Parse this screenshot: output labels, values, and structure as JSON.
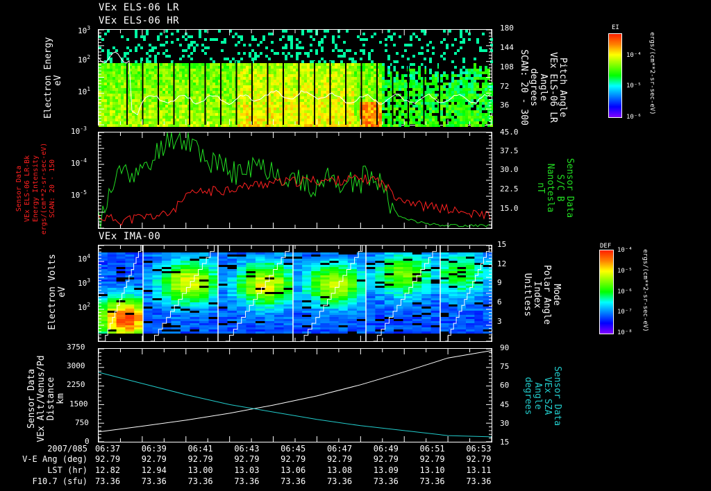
{
  "colors": {
    "background": "#000000",
    "axis": "#ffffff",
    "red_series": "#ff2020",
    "green_series": "#22dd22",
    "cyan_series": "#22cccc",
    "white_series": "#ffffff"
  },
  "panel1": {
    "title_lines": [
      "VEx ELS-06 LR",
      "VEx ELS-06 HR"
    ],
    "left_label": [
      "Electron Energy",
      "eV"
    ],
    "right_label": [
      "Pitch Angle",
      "VEx ELS-06 LR",
      "Angle",
      "degrees",
      "SCAN: 20 - 300"
    ],
    "left_ticks": [
      {
        "base": "10",
        "exp": "3"
      },
      {
        "base": "10",
        "exp": "2"
      },
      {
        "base": "10",
        "exp": "1"
      }
    ],
    "right_ticks": [
      "180",
      "144",
      "108",
      "72",
      "36"
    ],
    "colorbar": {
      "title": "EI",
      "ticks": [
        "10⁻⁴",
        "10⁻⁵",
        "10⁻⁶"
      ],
      "unit": "ergs/(cm**2-sr-sec-eV)"
    }
  },
  "panel2": {
    "left_label": [
      "Sensor Data",
      "VEx ELS-06 LR-Bk",
      "Energy Intensity",
      "ergs/(cm**2-sr-sec-eV)",
      "SCAN: 20 - 150"
    ],
    "right_label": [
      "Sensor Data",
      "S/C B",
      "Nanotesla",
      "nT"
    ],
    "left_ticks": [
      {
        "base": "10",
        "exp": "-3"
      },
      {
        "base": "10",
        "exp": "-4"
      },
      {
        "base": "10",
        "exp": "-5"
      }
    ],
    "right_ticks": [
      "45.0",
      "37.5",
      "30.0",
      "22.5",
      "15.0"
    ]
  },
  "panel3": {
    "title": "VEx IMA-00",
    "left_label": [
      "Electron Volts",
      "eV"
    ],
    "right_label": [
      "Mode",
      "Polar Angle",
      "Index",
      "Unitless"
    ],
    "left_ticks": [
      {
        "base": "10",
        "exp": "4"
      },
      {
        "base": "10",
        "exp": "3"
      },
      {
        "base": "10",
        "exp": "2"
      }
    ],
    "right_ticks": [
      "15",
      "12",
      "9",
      "6",
      "3"
    ],
    "colorbar": {
      "title": "DEF",
      "ticks": [
        "10⁻⁴",
        "10⁻⁵",
        "10⁻⁶",
        "10⁻⁷",
        "10⁻⁸"
      ],
      "unit": "ergs/(cm**2-sr-sec-eV)"
    }
  },
  "panel4": {
    "left_label": [
      "Sensor Data",
      "VEx Alt/Venus/Pd",
      "Distance",
      "km"
    ],
    "right_label": [
      "Sensor Data",
      "VEx SZA",
      "Angle",
      "degrees"
    ],
    "left_ticks": [
      "3750",
      "3000",
      "2250",
      "1500",
      "750",
      "0"
    ],
    "right_ticks": [
      "90",
      "75",
      "60",
      "45",
      "30",
      "15"
    ]
  },
  "footer": {
    "labels": [
      "2007/085",
      "V-E Ang (deg)",
      "LST (hr)",
      "F10.7 (sfu)"
    ],
    "times": [
      "06:37",
      "06:39",
      "06:41",
      "06:43",
      "06:45",
      "06:47",
      "06:49",
      "06:51",
      "06:53"
    ],
    "ve_ang": [
      "92.79",
      "92.79",
      "92.79",
      "92.79",
      "92.79",
      "92.79",
      "92.79",
      "92.79",
      "92.79"
    ],
    "lst": [
      "12.82",
      "12.94",
      "13.00",
      "13.03",
      "13.06",
      "13.08",
      "13.09",
      "13.10",
      "13.11"
    ],
    "f107": [
      "73.36",
      "73.36",
      "73.36",
      "73.36",
      "73.36",
      "73.36",
      "73.36",
      "73.36",
      "73.36"
    ]
  },
  "chart_data": [
    {
      "type": "heatmap",
      "title": "VEx ELS-06 LR / VEx ELS-06 HR",
      "ylabel": "Electron Energy (eV)",
      "y2label": "Pitch Angle, VEx ELS-06 LR, degrees, SCAN: 20 - 300",
      "ylim": [
        1,
        1000
      ],
      "yscale": "log",
      "y2lim": [
        0,
        180
      ],
      "colorbar": {
        "label": "EI ergs/(cm**2-sr-sec-eV)",
        "range": [
          1e-06,
          0.001
        ]
      },
      "x_range": [
        "06:37",
        "06:54"
      ],
      "overlay_line": {
        "name": "Pitch Angle",
        "approx_values_deg": [
          90,
          75,
          20,
          40,
          33,
          28,
          30,
          30,
          33,
          36,
          34,
          32,
          38,
          36,
          32,
          35,
          40,
          42,
          42
        ]
      }
    },
    {
      "type": "line",
      "ylabel": "Energy Intensity ergs/(cm**2-sr-sec-eV) (VEx ELS-06 LR-Bk, SCAN: 20-150)",
      "y2label": "S/C B (nT)",
      "ylim": [
        3e-06,
        0.001
      ],
      "yscale": "log",
      "y2lim": [
        10,
        45
      ],
      "x": [
        "06:37",
        "06:38",
        "06:39",
        "06:40",
        "06:41",
        "06:42",
        "06:43",
        "06:44",
        "06:45",
        "06:46",
        "06:47",
        "06:48",
        "06:49",
        "06:50",
        "06:51",
        "06:52",
        "06:53",
        "06:54"
      ],
      "series": [
        {
          "name": "VEx ELS-06 LR-Bk Energy Intensity",
          "axis": "left",
          "color": "red",
          "values": [
            6e-06,
            5e-06,
            6e-06,
            7e-06,
            2.5e-05,
            3e-05,
            3.5e-05,
            4.5e-05,
            5e-05,
            5.5e-05,
            5.5e-05,
            6e-05,
            6e-05,
            2e-05,
            1.2e-05,
            1e-05,
            7e-06,
            7e-06
          ]
        },
        {
          "name": "S/C B",
          "axis": "right",
          "color": "green",
          "values": [
            12,
            32,
            30,
            44,
            42,
            33,
            30,
            33,
            30,
            25,
            28,
            26,
            30,
            14,
            12,
            11,
            11,
            11
          ]
        }
      ]
    },
    {
      "type": "heatmap",
      "title": "VEx IMA-00",
      "ylabel": "Electron Volts (eV)",
      "y2label": "Mode Polar Angle Index (Unitless)",
      "ylim": [
        10,
        30000
      ],
      "yscale": "log",
      "y2lim": [
        0,
        15
      ],
      "colorbar": {
        "label": "DEF ergs/(cm**2-sr-sec-eV)",
        "range": [
          1e-08,
          0.0001
        ]
      },
      "overlay_line": {
        "name": "Polar Angle Index",
        "pattern": "staircase 0->15 repeated every ~3 minutes"
      }
    },
    {
      "type": "line",
      "ylabel": "VEx Alt/Venus/Pd Distance (km)",
      "y2label": "VEx SZA Angle (degrees)",
      "ylim": [
        0,
        3750
      ],
      "y2lim": [
        15,
        90
      ],
      "x": [
        "06:37",
        "06:39",
        "06:41",
        "06:43",
        "06:45",
        "06:47",
        "06:49",
        "06:51",
        "06:53",
        "06:54"
      ],
      "series": [
        {
          "name": "VEx Alt/Venus/Pd Distance",
          "axis": "left",
          "color": "white",
          "values": [
            400,
            630,
            870,
            1150,
            1480,
            1850,
            2300,
            2820,
            3380,
            3680
          ]
        },
        {
          "name": "VEx SZA Angle",
          "axis": "right",
          "color": "cyan",
          "values": [
            71,
            62,
            53,
            45,
            39,
            33,
            28,
            24,
            20,
            19
          ]
        }
      ]
    }
  ]
}
